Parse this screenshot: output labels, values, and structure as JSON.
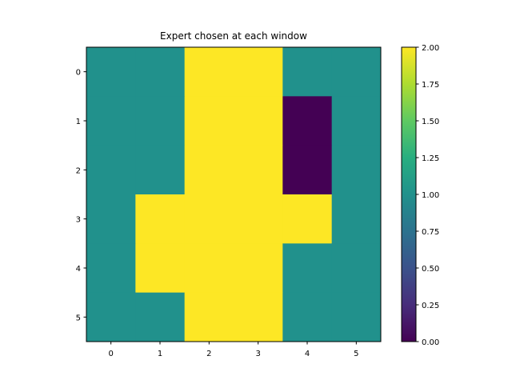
{
  "chart_data": {
    "type": "heatmap",
    "title": "Expert chosen at each window",
    "xlabel": "",
    "ylabel": "",
    "x_ticks": [
      "0",
      "1",
      "2",
      "3",
      "4",
      "5"
    ],
    "y_ticks": [
      "0",
      "1",
      "2",
      "3",
      "4",
      "5"
    ],
    "values": [
      [
        1,
        1,
        2,
        2,
        1,
        1
      ],
      [
        1,
        1,
        2,
        2,
        0,
        1
      ],
      [
        1,
        1,
        2,
        2,
        0,
        1
      ],
      [
        1,
        2,
        2,
        2,
        2,
        1
      ],
      [
        1,
        2,
        2,
        2,
        1,
        1
      ],
      [
        1,
        1,
        2,
        2,
        1,
        1
      ]
    ],
    "colormap": "viridis",
    "vmin": 0,
    "vmax": 2,
    "colors": {
      "0": "#440154",
      "1": "#21918c",
      "2": "#fde725"
    },
    "colorbar": {
      "ticks": [
        "0.00",
        "0.25",
        "0.50",
        "0.75",
        "1.00",
        "1.25",
        "1.50",
        "1.75",
        "2.00"
      ],
      "values": [
        0,
        0.25,
        0.5,
        0.75,
        1.0,
        1.25,
        1.5,
        1.75,
        2.0
      ]
    },
    "grid": false,
    "legend": "colorbar-right"
  }
}
